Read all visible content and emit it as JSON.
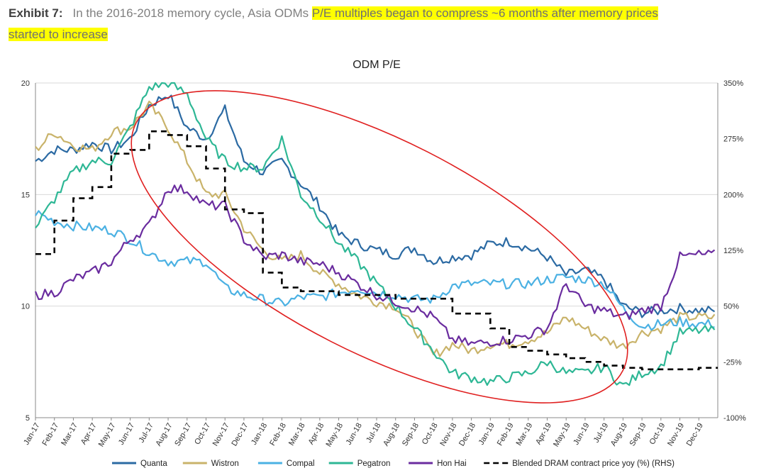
{
  "exhibit": {
    "label": "Exhibit 7:",
    "text_plain": "In the 2016-2018 memory cycle, Asia ODMs ",
    "text_highlight_1": "P/E multiples began to compress ~6 months after memory prices",
    "text_highlight_2": "started to increase"
  },
  "chart_data": {
    "type": "line",
    "title": "ODM P/E",
    "xlabel": "",
    "ylabel": "",
    "ylim": [
      5,
      20
    ],
    "y2lim": [
      -100,
      350
    ],
    "yticks": [
      "20",
      "15",
      "10",
      "5"
    ],
    "y2ticks": [
      "350%",
      "275%",
      "200%",
      "125%",
      "50%",
      "-25%",
      "-100%"
    ],
    "categories": [
      "Jan-17",
      "Feb-17",
      "Mar-17",
      "Apr-17",
      "May-17",
      "Jun-17",
      "Jul-17",
      "Aug-17",
      "Sep-17",
      "Oct-17",
      "Nov-17",
      "Dec-17",
      "Jan-18",
      "Feb-18",
      "Mar-18",
      "Apr-18",
      "May-18",
      "Jun-18",
      "Jul-18",
      "Aug-18",
      "Sep-18",
      "Oct-18",
      "Nov-18",
      "Dec-18",
      "Jan-19",
      "Feb-19",
      "Mar-19",
      "Apr-19",
      "May-19",
      "Jun-19",
      "Jul-19",
      "Aug-19",
      "Sep-19",
      "Oct-19",
      "Nov-19",
      "Dec-19"
    ],
    "series": [
      {
        "name": "Quanta",
        "color": "#2b6aa3",
        "axis": "left",
        "values": [
          16.5,
          17.0,
          17.0,
          17.3,
          17.0,
          17.5,
          19.0,
          19.5,
          18.0,
          17.5,
          18.8,
          16.5,
          16.0,
          16.5,
          15.5,
          14.5,
          13.2,
          12.8,
          12.5,
          12.3,
          12.6,
          12.0,
          12.2,
          12.3,
          12.8,
          12.9,
          12.6,
          12.2,
          11.4,
          11.6,
          11.2,
          10.0,
          9.7,
          9.8,
          9.9,
          9.8
        ]
      },
      {
        "name": "Wistron",
        "color": "#c9b36a",
        "axis": "left",
        "values": [
          17.0,
          17.8,
          17.2,
          17.0,
          17.8,
          18.0,
          19.0,
          18.0,
          16.5,
          15.0,
          15.0,
          13.5,
          12.5,
          12.0,
          12.3,
          11.5,
          11.0,
          10.5,
          10.2,
          10.0,
          9.0,
          7.8,
          8.3,
          8.0,
          8.3,
          8.3,
          8.5,
          8.8,
          9.5,
          9.0,
          8.5,
          8.2,
          8.8,
          9.0,
          9.5,
          9.5
        ]
      },
      {
        "name": "Compal",
        "color": "#4bb1e3",
        "axis": "left",
        "values": [
          14.2,
          13.8,
          13.6,
          13.5,
          13.4,
          13.0,
          12.4,
          12.0,
          12.0,
          12.0,
          10.8,
          10.5,
          10.3,
          10.1,
          10.4,
          10.4,
          10.6,
          10.8,
          10.6,
          10.5,
          10.3,
          10.3,
          10.9,
          11.0,
          11.0,
          11.0,
          11.0,
          11.2,
          11.3,
          11.2,
          11.0,
          9.9,
          9.1,
          9.2,
          9.3,
          9.2
        ]
      },
      {
        "name": "Pegatron",
        "color": "#2eb795",
        "axis": "left",
        "values": [
          13.5,
          14.8,
          16.0,
          16.5,
          16.5,
          18.0,
          19.8,
          20.0,
          19.5,
          17.5,
          16.5,
          16.2,
          16.2,
          17.5,
          15.0,
          14.0,
          12.8,
          12.0,
          11.0,
          10.0,
          9.0,
          8.0,
          7.0,
          6.8,
          6.6,
          6.8,
          7.0,
          7.5,
          7.0,
          7.0,
          7.3,
          6.4,
          7.0,
          7.3,
          8.8,
          8.9
        ]
      },
      {
        "name": "Hon Hai",
        "color": "#6a2c9f",
        "axis": "left",
        "values": [
          10.5,
          10.6,
          11.2,
          11.5,
          12.0,
          13.0,
          13.6,
          15.3,
          15.2,
          14.5,
          14.5,
          13.0,
          12.2,
          12.3,
          12.0,
          11.9,
          11.5,
          11.0,
          10.5,
          10.2,
          9.9,
          9.5,
          8.5,
          8.3,
          8.4,
          8.5,
          8.7,
          9.0,
          11.0,
          10.0,
          9.8,
          9.5,
          9.8,
          10.0,
          12.2,
          12.3
        ]
      },
      {
        "name": "Blended DRAM contract price yoy (%) (RHS)",
        "color": "#000000",
        "axis": "right",
        "dashed": true,
        "values": [
          120,
          165,
          195,
          210,
          255,
          260,
          285,
          280,
          265,
          235,
          180,
          175,
          95,
          75,
          70,
          70,
          65,
          65,
          65,
          60,
          60,
          60,
          40,
          40,
          20,
          -5,
          -10,
          -15,
          -20,
          -25,
          -30,
          -33,
          -35,
          -35,
          -35,
          -33
        ]
      }
    ],
    "annotations": [
      {
        "type": "ellipse",
        "color": "#e02020",
        "label": ""
      }
    ]
  }
}
